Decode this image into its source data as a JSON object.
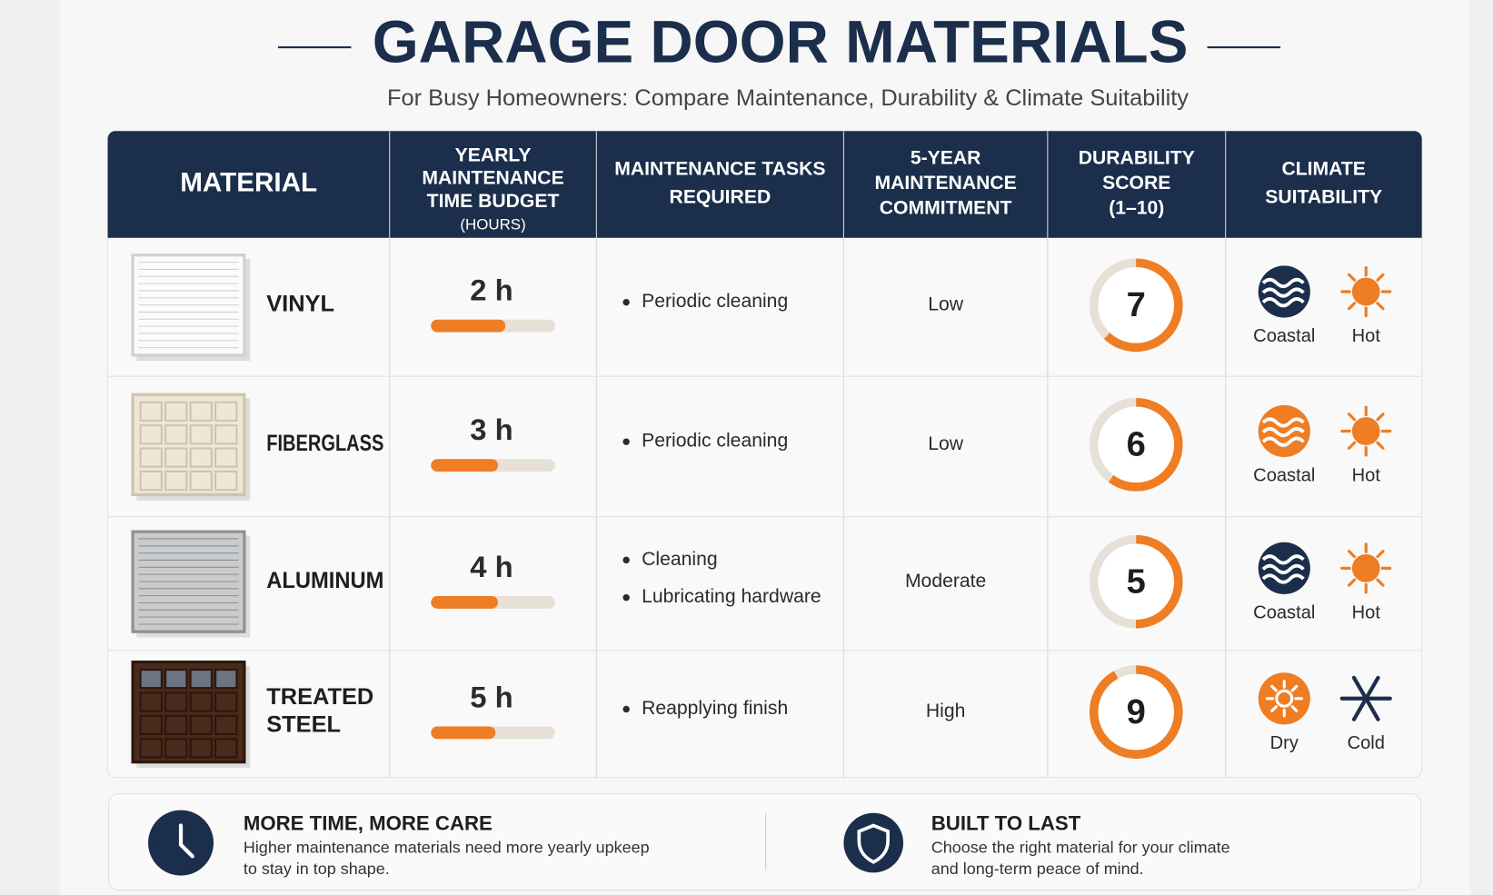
{
  "header": {
    "title": "GARAGE DOOR MATERIALS",
    "subtitle": "For Busy Homeowners: Compare Maintenance, Durability & Climate Suitability"
  },
  "table": {
    "columns": [
      [
        "MATERIAL"
      ],
      [
        "YEARLY",
        "MAINTENANCE",
        "TIME BUDGET",
        "(HOURS)"
      ],
      [
        "MAINTENANCE TASKS",
        "REQUIRED"
      ],
      [
        "5-YEAR",
        "MAINTENANCE",
        "COMMITMENT"
      ],
      [
        "DURABILITY",
        "SCORE",
        "(1–10)"
      ],
      [
        "CLIMATE",
        "SUITABILITY"
      ]
    ],
    "rows": [
      {
        "material": [
          "VINYL"
        ],
        "hours": "2 h",
        "tasks": [
          "Periodic cleaning"
        ],
        "commitment": "Low",
        "score": 7,
        "climate": [
          {
            "icon": "coastal",
            "color": "#1b2e4b",
            "label": "Coastal"
          },
          {
            "icon": "sun",
            "color": "#ee7d23",
            "label": "Hot"
          }
        ]
      },
      {
        "material": [
          "FIBERGLASS"
        ],
        "hours": "3 h",
        "tasks": [
          "Periodic cleaning"
        ],
        "commitment": "Low",
        "score": 6,
        "climate": [
          {
            "icon": "coastal",
            "color": "#ee7d23",
            "label": "Coastal"
          },
          {
            "icon": "sun",
            "color": "#ee7d23",
            "label": "Hot"
          }
        ]
      },
      {
        "material": [
          "ALUMINUM"
        ],
        "hours": "4 h",
        "tasks": [
          "Cleaning",
          "Lubricating hardware"
        ],
        "commitment": "Moderate",
        "score": 5,
        "climate": [
          {
            "icon": "coastal",
            "color": "#1b2e4b",
            "label": "Coastal"
          },
          {
            "icon": "sun",
            "color": "#ee7d23",
            "label": "Hot"
          }
        ]
      },
      {
        "material": [
          "TREATED",
          "STEEL"
        ],
        "hours": "5 h",
        "tasks": [
          "Reapplying finish"
        ],
        "commitment": "High",
        "score": 9,
        "climate": [
          {
            "icon": "dry",
            "color": "#ee7d23",
            "label": "Dry"
          },
          {
            "icon": "snow",
            "color": "#1b2e4b",
            "label": "Cold"
          }
        ]
      }
    ]
  },
  "footer": [
    {
      "title": "MORE TIME, MORE CARE",
      "text": [
        "Higher maintenance materials need more yearly upkeep",
        "to stay in top shape."
      ]
    },
    {
      "title": "BUILT TO LAST",
      "text": [
        "Choose the right material for your climate",
        "and long-term peace of mind."
      ]
    }
  ]
}
